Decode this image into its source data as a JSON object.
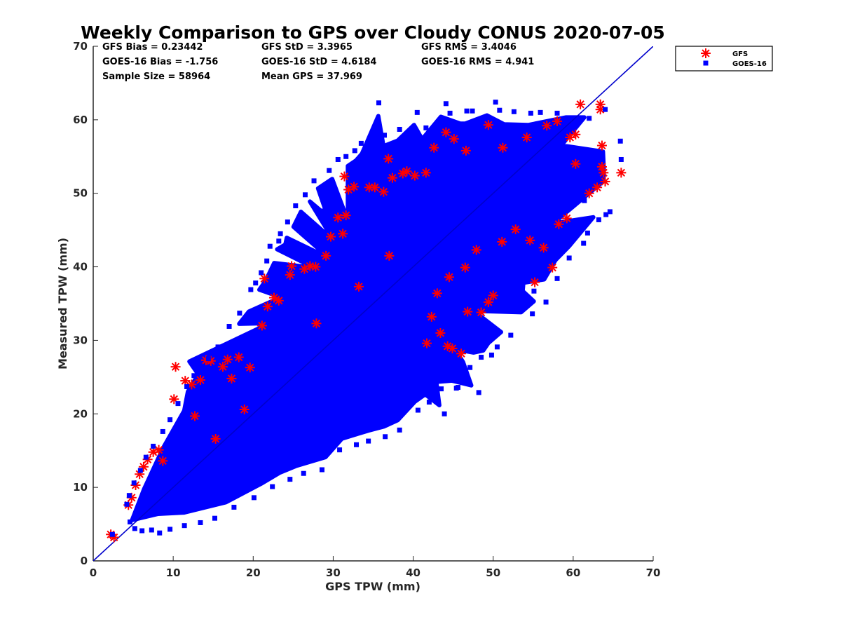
{
  "chart_data": {
    "type": "scatter",
    "title": "Weekly Comparison to GPS over Cloudy CONUS 2020-07-05",
    "xlabel": "GPS TPW (mm)",
    "ylabel": "Measured TPW (mm)",
    "xlim": [
      0,
      70
    ],
    "ylim": [
      0,
      70
    ],
    "xticks": [
      "0",
      "10",
      "20",
      "30",
      "40",
      "50",
      "60",
      "70"
    ],
    "yticks": [
      "0",
      "10",
      "20",
      "30",
      "40",
      "50",
      "60",
      "70"
    ],
    "grid": false,
    "legend_position": "outside top-right",
    "stats": [
      [
        "GFS Bias = 0.23442",
        "GFS StD = 3.3965",
        "GFS RMS = 3.4046"
      ],
      [
        "GOES-16 Bias = -1.756",
        "GOES-16 StD = 4.6184",
        "GOES-16 RMS = 4.941"
      ],
      [
        "Sample Size = 58964",
        "Mean GPS = 37.969"
      ]
    ],
    "reference_line": {
      "x": [
        0,
        70
      ],
      "y": [
        0,
        70
      ],
      "color": "#0000cc"
    },
    "series": [
      {
        "name": "GFS",
        "marker": "asterisk",
        "color": "#ff0000",
        "points": [
          [
            2.2,
            3.6
          ],
          [
            2.6,
            3.2
          ],
          [
            4.4,
            7.6
          ],
          [
            4.8,
            8.6
          ],
          [
            5.3,
            10.3
          ],
          [
            5.8,
            11.8
          ],
          [
            6.3,
            12.8
          ],
          [
            6.8,
            13.8
          ],
          [
            7.5,
            14.8
          ],
          [
            8.2,
            15.1
          ],
          [
            10.1,
            22.0
          ],
          [
            10.3,
            26.4
          ],
          [
            11.5,
            24.5
          ],
          [
            12.3,
            24.0
          ],
          [
            13.4,
            24.6
          ],
          [
            14.1,
            27.3
          ],
          [
            14.7,
            27.2
          ],
          [
            16.2,
            26.4
          ],
          [
            16.8,
            27.4
          ],
          [
            18.2,
            27.7
          ],
          [
            17.3,
            24.8
          ],
          [
            19.6,
            26.3
          ],
          [
            21.1,
            32.0
          ],
          [
            21.8,
            34.6
          ],
          [
            21.4,
            38.4
          ],
          [
            22.6,
            35.8
          ],
          [
            23.2,
            35.4
          ],
          [
            24.6,
            38.9
          ],
          [
            24.8,
            40.1
          ],
          [
            26.4,
            39.7
          ],
          [
            27.1,
            40.1
          ],
          [
            27.8,
            40.0
          ],
          [
            29.1,
            41.5
          ],
          [
            29.7,
            44.1
          ],
          [
            30.6,
            46.7
          ],
          [
            31.2,
            44.5
          ],
          [
            31.6,
            47.0
          ],
          [
            31.4,
            52.3
          ],
          [
            31.9,
            50.5
          ],
          [
            32.6,
            50.9
          ],
          [
            34.5,
            50.8
          ],
          [
            35.2,
            50.8
          ],
          [
            36.3,
            50.2
          ],
          [
            36.9,
            54.7
          ],
          [
            37.4,
            52.1
          ],
          [
            38.7,
            52.7
          ],
          [
            39.2,
            53.0
          ],
          [
            40.2,
            52.4
          ],
          [
            41.6,
            52.8
          ],
          [
            42.6,
            56.2
          ],
          [
            44.1,
            58.3
          ],
          [
            45.1,
            57.4
          ],
          [
            46.6,
            55.8
          ],
          [
            49.4,
            59.3
          ],
          [
            51.2,
            56.2
          ],
          [
            54.2,
            57.6
          ],
          [
            56.7,
            59.2
          ],
          [
            58.0,
            59.8
          ],
          [
            59.6,
            57.6
          ],
          [
            60.3,
            58.0
          ],
          [
            60.9,
            62.1
          ],
          [
            63.4,
            62.1
          ],
          [
            63.4,
            61.4
          ],
          [
            63.6,
            56.5
          ],
          [
            66.0,
            52.8
          ],
          [
            63.8,
            52.8
          ],
          [
            64.0,
            51.6
          ],
          [
            63.0,
            50.8
          ],
          [
            62.0,
            50.0
          ],
          [
            63.6,
            53.6
          ],
          [
            60.3,
            54.0
          ],
          [
            57.4,
            39.9
          ],
          [
            56.3,
            42.6
          ],
          [
            54.6,
            43.6
          ],
          [
            52.8,
            45.1
          ],
          [
            51.1,
            43.4
          ],
          [
            47.9,
            42.3
          ],
          [
            46.5,
            39.9
          ],
          [
            44.5,
            38.6
          ],
          [
            43.0,
            36.4
          ],
          [
            42.3,
            33.2
          ],
          [
            43.4,
            31.0
          ],
          [
            44.9,
            28.9
          ],
          [
            46.0,
            28.2
          ],
          [
            44.3,
            29.2
          ],
          [
            41.7,
            29.6
          ],
          [
            46.8,
            33.9
          ],
          [
            48.5,
            33.8
          ],
          [
            49.4,
            35.2
          ],
          [
            50.0,
            36.1
          ],
          [
            55.2,
            37.9
          ],
          [
            58.2,
            45.8
          ],
          [
            59.2,
            46.6
          ],
          [
            33.2,
            37.3
          ],
          [
            18.9,
            20.6
          ],
          [
            12.7,
            19.7
          ],
          [
            8.7,
            13.6
          ],
          [
            15.3,
            16.6
          ],
          [
            27.9,
            32.3
          ],
          [
            37.0,
            41.5
          ]
        ]
      },
      {
        "name": "GOES-16",
        "marker": "square",
        "color": "#0000ff",
        "points": [
          [
            2.4,
            3.6
          ],
          [
            4.6,
            5.3
          ],
          [
            5.2,
            4.4
          ],
          [
            6.1,
            4.1
          ],
          [
            7.3,
            4.2
          ],
          [
            8.3,
            3.8
          ],
          [
            9.6,
            4.3
          ],
          [
            11.4,
            4.8
          ],
          [
            13.4,
            5.2
          ],
          [
            15.2,
            5.8
          ],
          [
            17.6,
            7.3
          ],
          [
            20.1,
            8.6
          ],
          [
            22.4,
            10.1
          ],
          [
            24.6,
            11.1
          ],
          [
            26.3,
            11.9
          ],
          [
            28.6,
            12.4
          ],
          [
            30.8,
            15.1
          ],
          [
            32.9,
            15.8
          ],
          [
            34.4,
            16.3
          ],
          [
            36.5,
            16.9
          ],
          [
            38.3,
            17.8
          ],
          [
            40.6,
            20.5
          ],
          [
            42.0,
            21.6
          ],
          [
            43.5,
            23.4
          ],
          [
            45.4,
            23.5
          ],
          [
            46.3,
            24.4
          ],
          [
            47.1,
            26.3
          ],
          [
            48.5,
            27.7
          ],
          [
            49.8,
            28.0
          ],
          [
            50.5,
            29.1
          ],
          [
            52.2,
            30.7
          ],
          [
            54.9,
            33.6
          ],
          [
            56.6,
            35.2
          ],
          [
            58.0,
            38.4
          ],
          [
            59.5,
            41.2
          ],
          [
            61.3,
            43.2
          ],
          [
            61.8,
            44.6
          ],
          [
            63.2,
            46.4
          ],
          [
            64.1,
            47.1
          ],
          [
            64.6,
            47.5
          ],
          [
            66.0,
            54.6
          ],
          [
            65.9,
            57.1
          ],
          [
            64.0,
            61.4
          ],
          [
            62.0,
            60.2
          ],
          [
            59.5,
            60.1
          ],
          [
            58.0,
            60.9
          ],
          [
            55.9,
            61.0
          ],
          [
            54.7,
            60.9
          ],
          [
            52.6,
            61.1
          ],
          [
            50.3,
            62.4
          ],
          [
            47.4,
            61.2
          ],
          [
            46.7,
            61.2
          ],
          [
            44.3,
            59.8
          ],
          [
            44.6,
            60.9
          ],
          [
            43.1,
            58.7
          ],
          [
            41.6,
            58.9
          ],
          [
            39.6,
            56.8
          ],
          [
            38.3,
            58.7
          ],
          [
            36.4,
            57.9
          ],
          [
            34.6,
            57.2
          ],
          [
            33.5,
            56.8
          ],
          [
            32.7,
            55.8
          ],
          [
            31.6,
            55.0
          ],
          [
            30.6,
            54.6
          ],
          [
            29.5,
            53.1
          ],
          [
            27.6,
            51.7
          ],
          [
            26.5,
            49.8
          ],
          [
            25.3,
            48.3
          ],
          [
            24.3,
            46.1
          ],
          [
            23.4,
            44.5
          ],
          [
            22.1,
            42.8
          ],
          [
            21.7,
            40.8
          ],
          [
            21.0,
            39.2
          ],
          [
            20.3,
            37.8
          ],
          [
            19.7,
            36.9
          ],
          [
            18.3,
            33.7
          ],
          [
            17.0,
            31.9
          ],
          [
            15.6,
            29.1
          ],
          [
            14.4,
            27.5
          ],
          [
            12.6,
            25.2
          ],
          [
            11.7,
            23.7
          ],
          [
            10.6,
            21.4
          ],
          [
            9.6,
            19.2
          ],
          [
            8.7,
            17.6
          ],
          [
            7.5,
            15.6
          ],
          [
            6.6,
            14.1
          ],
          [
            5.9,
            12.3
          ],
          [
            5.1,
            10.6
          ],
          [
            4.5,
            8.9
          ],
          [
            4.2,
            7.7
          ],
          [
            35.7,
            62.3
          ],
          [
            40.5,
            61.0
          ],
          [
            44.1,
            62.2
          ],
          [
            50.8,
            61.3
          ],
          [
            28.9,
            47.6
          ],
          [
            23.2,
            43.5
          ],
          [
            61.4,
            49.0
          ],
          [
            55.1,
            36.7
          ],
          [
            53.2,
            35.1
          ],
          [
            43.9,
            20.0
          ],
          [
            48.2,
            22.9
          ],
          [
            45.6,
            23.6
          ]
        ]
      }
    ]
  }
}
